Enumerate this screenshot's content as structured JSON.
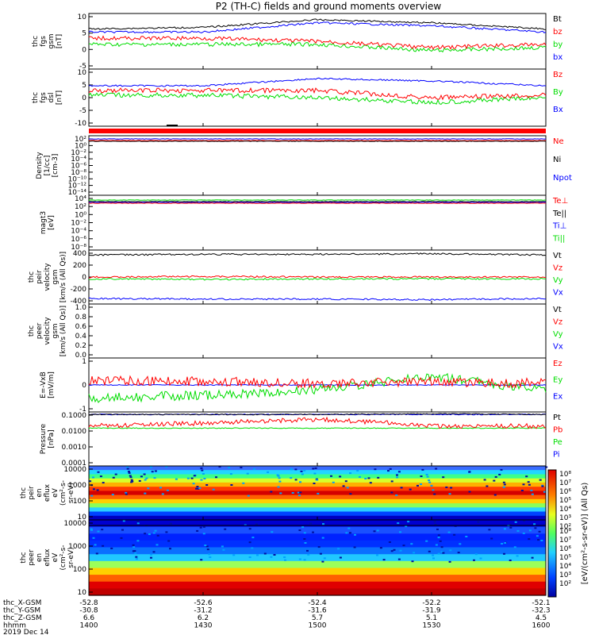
{
  "title": "P2 (TH-C) fields and ground moments overview",
  "colors": {
    "black": "#000000",
    "red": "#ff0000",
    "green": "#00dd00",
    "blue": "#0000ff",
    "gray": "#999999"
  },
  "panels": [
    {
      "id": "fgs-gsm",
      "ylabel": [
        "thc",
        "fgs",
        "gsm",
        "[nT]"
      ],
      "yticks": [
        "10",
        "5",
        "0",
        "-5"
      ],
      "legend": [
        {
          "text": "Bt",
          "color": "black"
        },
        {
          "text": "bz",
          "color": "red"
        },
        {
          "text": "by",
          "color": "green"
        },
        {
          "text": "bx",
          "color": "blue"
        }
      ]
    },
    {
      "id": "fgs-dsl",
      "ylabel": [
        "thc",
        "fgs",
        "dsl",
        "[nT]"
      ],
      "yticks": [
        "10",
        "5",
        "0",
        "-5",
        "-10"
      ],
      "legend": [
        {
          "text": "Bz",
          "color": "red"
        },
        {
          "text": "By",
          "color": "green"
        },
        {
          "text": "Bx",
          "color": "blue"
        }
      ]
    },
    {
      "id": "density",
      "ylabel": [
        "Density",
        "[1/cc]",
        "[cm-3]"
      ],
      "yticks": [
        "10²",
        "10⁰",
        "10⁻²",
        "10⁻⁴",
        "10⁻⁶",
        "10⁻⁸",
        "10⁻¹⁰",
        "10⁻¹²",
        "10⁻¹⁴"
      ],
      "legend": [
        {
          "text": "Ne",
          "color": "red"
        },
        {
          "text": "Ni",
          "color": "black"
        },
        {
          "text": "Npot",
          "color": "blue"
        }
      ]
    },
    {
      "id": "temperature",
      "ylabel": [
        "magt3",
        "[eV]"
      ],
      "yticks": [
        "10⁴",
        "10²",
        "10⁰",
        "10⁻²",
        "10⁻⁴",
        "10⁻⁶",
        "10⁻⁸"
      ],
      "legend": [
        {
          "text": "Te⊥",
          "color": "red"
        },
        {
          "text": "Te||",
          "color": "black"
        },
        {
          "text": "Ti⊥",
          "color": "blue"
        },
        {
          "text": "Ti||",
          "color": "green"
        }
      ]
    },
    {
      "id": "peir-velocity",
      "ylabel": [
        "thc",
        "peir",
        "velocity",
        "gsm",
        "[km/s (All Qs)]"
      ],
      "yticks": [
        "400",
        "200",
        "0",
        "-200",
        "-400"
      ],
      "legend": [
        {
          "text": "Vt",
          "color": "black"
        },
        {
          "text": "Vz",
          "color": "red"
        },
        {
          "text": "Vy",
          "color": "green"
        },
        {
          "text": "Vx",
          "color": "blue"
        }
      ]
    },
    {
      "id": "peer-velocity",
      "ylabel": [
        "thc",
        "peer",
        "velocity",
        "gsm",
        "[km/s (All Qs)]"
      ],
      "yticks": [
        "1.0",
        "0.8",
        "0.6",
        "0.4",
        "0.2",
        "0.0"
      ],
      "legend": [
        {
          "text": "Vt",
          "color": "black"
        },
        {
          "text": "Vz",
          "color": "red"
        },
        {
          "text": "Vy",
          "color": "green"
        },
        {
          "text": "Vx",
          "color": "blue"
        }
      ]
    },
    {
      "id": "efield",
      "ylabel": [
        "E=-VxB",
        "[mV/m]"
      ],
      "yticks": [
        "1",
        "0",
        "-1"
      ],
      "legend": [
        {
          "text": "Ez",
          "color": "red"
        },
        {
          "text": "Ey",
          "color": "green"
        },
        {
          "text": "Ex",
          "color": "blue"
        }
      ]
    },
    {
      "id": "pressure",
      "ylabel": [
        "Pressure",
        "[nPa]"
      ],
      "yticks": [
        "0.1000",
        "0.0100",
        "0.0010",
        "0.0001"
      ],
      "legend": [
        {
          "text": "Pt",
          "color": "black"
        },
        {
          "text": "Pb",
          "color": "red"
        },
        {
          "text": "Pe",
          "color": "green"
        },
        {
          "text": "Pi",
          "color": "blue"
        }
      ]
    },
    {
      "id": "peir-eflux",
      "ylabel": [
        "thc",
        "peir",
        "en",
        "eflux",
        "eV",
        "(cm²-s-",
        "sr-eV)"
      ],
      "yticks": [
        "10000",
        "1000",
        "100",
        "10"
      ],
      "legend": []
    },
    {
      "id": "peer-eflux",
      "ylabel": [
        "thc",
        "peer",
        "en",
        "eflux",
        "eV",
        "(cm²-s-",
        "sr-eV)"
      ],
      "yticks": [
        "10000",
        "1000",
        "100",
        "10"
      ],
      "legend": []
    }
  ],
  "colorbar": {
    "label": "[eV/(cm²-s-sr-eV)] (All Qs)",
    "top_ticks": [
      "10⁸",
      "10⁷",
      "10⁶",
      "10⁵",
      "10⁴",
      "10³",
      "10²"
    ],
    "bottom_ticks": [
      "10⁸",
      "10⁷",
      "10⁶",
      "10⁵",
      "10⁴",
      "10³",
      "10²"
    ]
  },
  "xaxis": {
    "rows": [
      {
        "label": "thc_X-GSM",
        "values": [
          "-52.8",
          "-52.6",
          "-52.4",
          "-52.2",
          "-52.1"
        ]
      },
      {
        "label": "thc_Y-GSM",
        "values": [
          "-30.8",
          "-31.2",
          "-31.6",
          "-31.9",
          "-32.3"
        ]
      },
      {
        "label": "thc_Z-GSM",
        "values": [
          "6.6",
          "6.2",
          "5.7",
          "5.1",
          "4.5"
        ]
      },
      {
        "label": "hhmm",
        "values": [
          "1400",
          "1430",
          "1500",
          "1530",
          "1600"
        ]
      }
    ],
    "date": "2019 Dec 14"
  },
  "chart_data": {
    "type": "line",
    "title": "P2 (TH-C) fields and ground moments overview",
    "x_time": [
      "1400",
      "1430",
      "1500",
      "1530",
      "1600"
    ],
    "series": [
      {
        "panel": "fgs-gsm",
        "name": "Bt",
        "values": [
          6,
          6.5,
          9,
          8,
          6
        ]
      },
      {
        "panel": "fgs-gsm",
        "name": "bz",
        "values": [
          3,
          3,
          2,
          0,
          1
        ]
      },
      {
        "panel": "fgs-gsm",
        "name": "by",
        "values": [
          1,
          1,
          1,
          -1,
          0
        ]
      },
      {
        "panel": "fgs-gsm",
        "name": "bx",
        "values": [
          5,
          5,
          8,
          7,
          5
        ]
      },
      {
        "panel": "fgs-dsl",
        "name": "Bz",
        "values": [
          2,
          2,
          2,
          -1,
          0
        ]
      },
      {
        "panel": "fgs-dsl",
        "name": "By",
        "values": [
          0,
          0,
          -1,
          -3,
          -1
        ]
      },
      {
        "panel": "fgs-dsl",
        "name": "Bx",
        "values": [
          4,
          4,
          7,
          6,
          4
        ]
      },
      {
        "panel": "peir-velocity",
        "name": "Vt",
        "values": [
          360,
          370,
          370,
          380,
          360
        ]
      },
      {
        "panel": "peir-velocity",
        "name": "Vz",
        "values": [
          0,
          10,
          0,
          0,
          0
        ]
      },
      {
        "panel": "peir-velocity",
        "name": "Vy",
        "values": [
          -30,
          -40,
          -30,
          -30,
          -30
        ]
      },
      {
        "panel": "peir-velocity",
        "name": "Vx",
        "values": [
          -350,
          -360,
          -360,
          -370,
          -350
        ]
      },
      {
        "panel": "efield",
        "name": "Ez",
        "values": [
          0.3,
          0.2,
          0.1,
          0.2,
          0.1
        ]
      },
      {
        "panel": "efield",
        "name": "Ey",
        "values": [
          -0.8,
          -0.6,
          -0.3,
          0.5,
          -0.3
        ]
      },
      {
        "panel": "efield",
        "name": "Ex",
        "values": [
          0,
          0,
          0,
          0,
          0
        ]
      },
      {
        "panel": "pressure",
        "name": "Pt",
        "values": [
          0.1,
          0.1,
          0.1,
          0.11,
          0.1
        ]
      },
      {
        "panel": "pressure",
        "name": "Pb",
        "values": [
          0.02,
          0.03,
          0.05,
          0.02,
          0.02
        ]
      },
      {
        "panel": "pressure",
        "name": "Pe",
        "values": [
          0.015,
          0.015,
          0.015,
          0.015,
          0.015
        ]
      },
      {
        "panel": "pressure",
        "name": "Pi",
        "values": [
          0.1,
          0.1,
          0.1,
          0.1,
          0.1
        ]
      }
    ]
  }
}
